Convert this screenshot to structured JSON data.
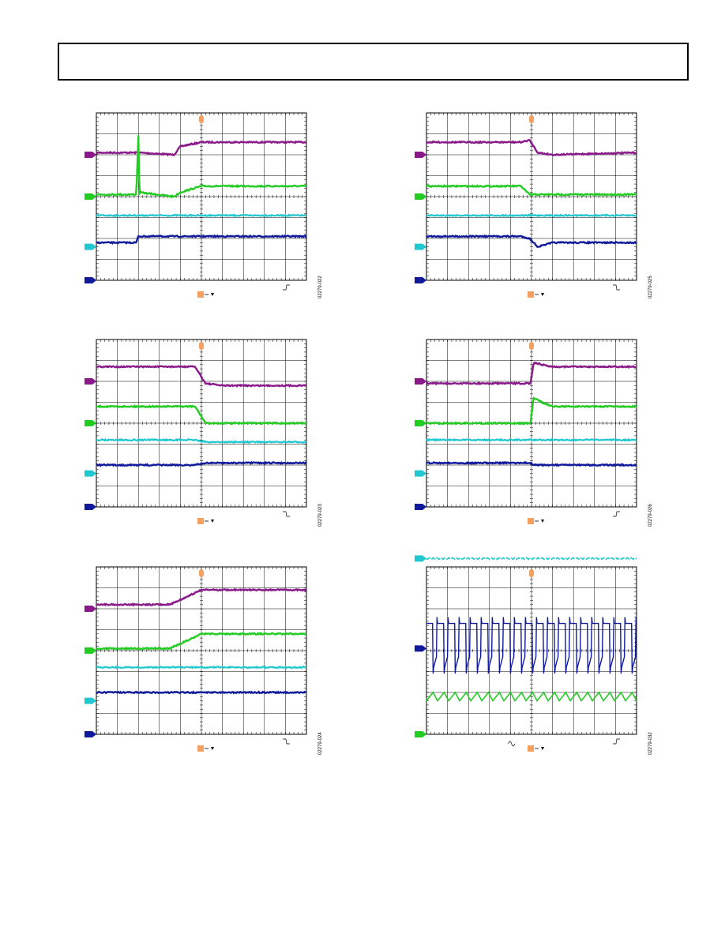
{
  "colors": {
    "ch1": "#8a1a8a",
    "ch2": "#22cc22",
    "ch3": "#22c8d0",
    "ch4": "#101a9a",
    "trigger": "#f4a060",
    "grid": "#000000"
  },
  "chart_data": [
    {
      "type": "line",
      "figure_id": "02279-022",
      "trigger_edge": "rising",
      "x": [
        0,
        1.9,
        2.0,
        2.05,
        3.7,
        4.0,
        5.0,
        10.0
      ],
      "series": [
        {
          "channel": "ch1",
          "marker_level": 6,
          "values": [
            6.1,
            6.1,
            6.1,
            6.1,
            6.0,
            6.4,
            6.6,
            6.6
          ]
        },
        {
          "channel": "ch2",
          "marker_level": 4,
          "values": [
            4.1,
            4.1,
            6.9,
            4.2,
            4.0,
            4.2,
            4.5,
            4.5
          ]
        },
        {
          "channel": "ch3",
          "marker_level": 1.6,
          "values": [
            3.1,
            3.1,
            3.1,
            3.1,
            3.1,
            3.1,
            3.1,
            3.1
          ]
        },
        {
          "channel": "ch4",
          "marker_level": 0,
          "values": [
            1.8,
            1.8,
            2.1,
            2.1,
            2.1,
            2.1,
            2.1,
            2.1
          ]
        }
      ]
    },
    {
      "type": "line",
      "figure_id": "02279-025",
      "trigger_edge": "falling",
      "x": [
        0,
        4.5,
        4.9,
        5.3,
        6.0,
        10.0
      ],
      "series": [
        {
          "channel": "ch1",
          "marker_level": 6,
          "values": [
            6.6,
            6.6,
            6.7,
            6.1,
            6.0,
            6.1
          ]
        },
        {
          "channel": "ch2",
          "marker_level": 4,
          "values": [
            4.5,
            4.5,
            4.1,
            4.1,
            4.1,
            4.1
          ]
        },
        {
          "channel": "ch3",
          "marker_level": 1.6,
          "values": [
            3.1,
            3.1,
            3.1,
            3.1,
            3.1,
            3.1
          ]
        },
        {
          "channel": "ch4",
          "marker_level": 0,
          "values": [
            2.1,
            2.1,
            2.0,
            1.6,
            1.8,
            1.8
          ]
        }
      ]
    },
    {
      "type": "line",
      "figure_id": "02279-023",
      "trigger_edge": "falling",
      "x": [
        0,
        4.7,
        5.2,
        6.0,
        10.0
      ],
      "series": [
        {
          "channel": "ch1",
          "marker_level": 6,
          "values": [
            6.7,
            6.7,
            5.9,
            5.8,
            5.8
          ]
        },
        {
          "channel": "ch2",
          "marker_level": 4,
          "values": [
            4.8,
            4.8,
            4.0,
            4.0,
            4.0
          ]
        },
        {
          "channel": "ch3",
          "marker_level": 1.6,
          "values": [
            3.2,
            3.2,
            3.1,
            3.1,
            3.1
          ]
        },
        {
          "channel": "ch4",
          "marker_level": 0,
          "values": [
            2.0,
            2.0,
            2.1,
            2.1,
            2.1
          ]
        }
      ]
    },
    {
      "type": "line",
      "figure_id": "02279-026",
      "trigger_edge": "rising",
      "x": [
        0,
        4.95,
        5.1,
        5.5,
        6.0,
        10.0
      ],
      "series": [
        {
          "channel": "ch1",
          "marker_level": 6,
          "values": [
            5.9,
            5.9,
            6.9,
            6.8,
            6.7,
            6.7
          ]
        },
        {
          "channel": "ch2",
          "marker_level": 4,
          "values": [
            4.0,
            4.0,
            5.2,
            5.0,
            4.8,
            4.8
          ]
        },
        {
          "channel": "ch3",
          "marker_level": 1.6,
          "values": [
            3.2,
            3.2,
            3.2,
            3.2,
            3.2,
            3.2
          ]
        },
        {
          "channel": "ch4",
          "marker_level": 0,
          "values": [
            2.1,
            2.1,
            2.0,
            2.0,
            2.0,
            2.0
          ]
        }
      ]
    },
    {
      "type": "line",
      "figure_id": "02279-024",
      "trigger_edge": "falling",
      "x": [
        0,
        3.5,
        5.0,
        10.0
      ],
      "series": [
        {
          "channel": "ch1",
          "marker_level": 6,
          "values": [
            6.2,
            6.2,
            6.9,
            6.9
          ]
        },
        {
          "channel": "ch2",
          "marker_level": 4,
          "values": [
            4.1,
            4.1,
            4.8,
            4.8
          ]
        },
        {
          "channel": "ch3",
          "marker_level": 1.6,
          "values": [
            3.2,
            3.2,
            3.2,
            3.2
          ]
        },
        {
          "channel": "ch4",
          "marker_level": 0,
          "values": [
            2.0,
            2.0,
            2.0,
            2.0
          ]
        }
      ]
    },
    {
      "type": "line",
      "figure_id": "02279-032",
      "trigger_edge": "rising",
      "second_trigger_symbol": true,
      "switching": {
        "periods": 19,
        "ch4_high": 5.3,
        "ch4_low": 3.2,
        "ch2_base": 1.6,
        "ch2_peak": 2.0,
        "ch3_level": 8.4
      },
      "series": [
        {
          "channel": "ch3",
          "marker_level": 8.4
        },
        {
          "channel": "ch4",
          "marker_level": 4.1
        },
        {
          "channel": "ch2",
          "marker_level": 0
        }
      ]
    }
  ]
}
